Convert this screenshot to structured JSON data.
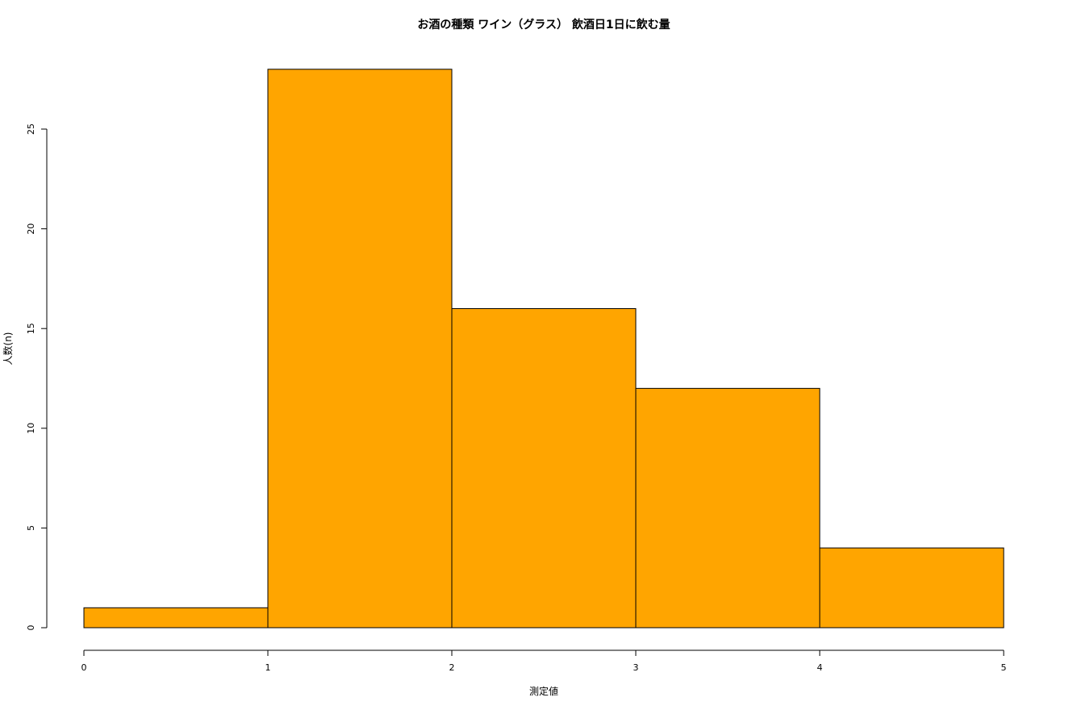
{
  "chart_data": {
    "type": "bar",
    "title": "お酒の種類 ワイン（グラス） 飲酒日1日に飲む量",
    "xlabel": "測定値",
    "ylabel": "人数(n)",
    "bin_edges": [
      0,
      1,
      2,
      3,
      4,
      5
    ],
    "values": [
      1,
      28,
      16,
      12,
      4
    ],
    "x_ticks": [
      "0",
      "1",
      "2",
      "3",
      "4",
      "5"
    ],
    "y_ticks": [
      "0",
      "5",
      "10",
      "15",
      "20",
      "25"
    ],
    "xlim": [
      0,
      5
    ],
    "ylim": [
      0,
      28
    ],
    "bar_color": "#FFA500",
    "border_color": "#000000",
    "grid": false
  }
}
